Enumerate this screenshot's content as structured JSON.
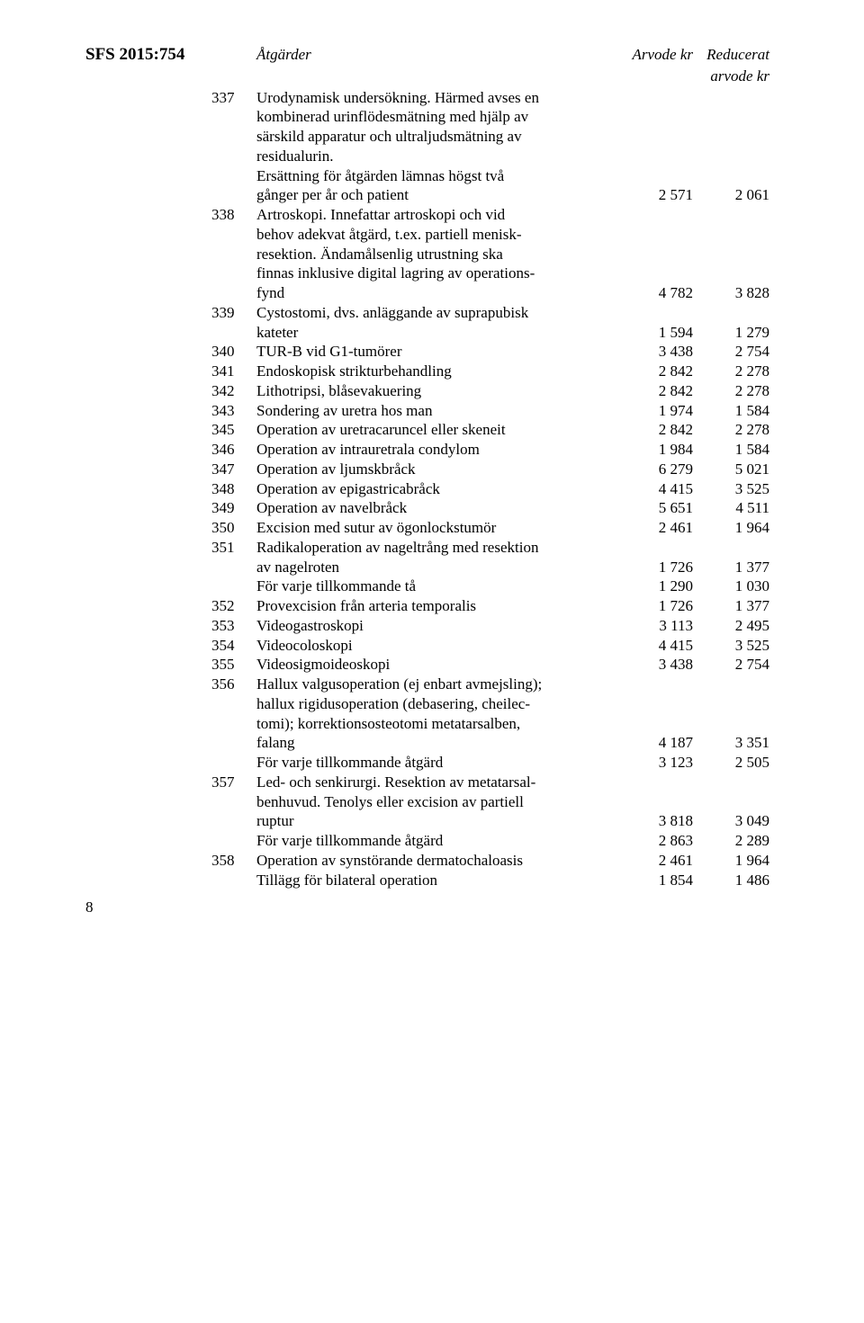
{
  "sfs_label": "SFS 2015:754",
  "page_number": "8",
  "header": {
    "atgarder": "Åtgärder",
    "arvode": "Arvode kr",
    "reducerat1": "Reducerat",
    "reducerat2": "arvode kr"
  },
  "rows": [
    {
      "code": "337",
      "lines": [
        {
          "text": "Urodynamisk undersökning. Härmed avses en"
        },
        {
          "text": "kombinerad urinflödesmätning med hjälp av"
        },
        {
          "text": "särskild apparatur och ultraljudsmätning av"
        },
        {
          "text": "residualurin."
        },
        {
          "text": "Ersättning för åtgärden lämnas högst två"
        },
        {
          "text": "gånger per år och patient",
          "a1": "2 571",
          "a2": "2 061"
        }
      ]
    },
    {
      "code": "338",
      "lines": [
        {
          "text": "Artroskopi. Innefattar artroskopi och vid"
        },
        {
          "text": "behov adekvat åtgärd, t.ex. partiell menisk-"
        },
        {
          "text": "resektion. Ändamålsenlig utrustning ska"
        },
        {
          "text": "finnas inklusive digital lagring av operations-"
        },
        {
          "text": "fynd",
          "a1": "4 782",
          "a2": "3 828"
        }
      ]
    },
    {
      "code": "339",
      "lines": [
        {
          "text": "Cystostomi, dvs. anläggande av suprapubisk"
        },
        {
          "text": "kateter",
          "a1": "1 594",
          "a2": "1 279"
        }
      ]
    },
    {
      "code": "340",
      "lines": [
        {
          "text": "TUR-B vid G1-tumörer",
          "a1": "3 438",
          "a2": "2 754"
        }
      ]
    },
    {
      "code": "341",
      "lines": [
        {
          "text": "Endoskopisk strikturbehandling",
          "a1": "2 842",
          "a2": "2 278"
        }
      ]
    },
    {
      "code": "342",
      "lines": [
        {
          "text": "Lithotripsi, blåsevakuering",
          "a1": "2 842",
          "a2": "2 278"
        }
      ]
    },
    {
      "code": "343",
      "lines": [
        {
          "text": "Sondering av uretra hos man",
          "a1": "1 974",
          "a2": "1 584"
        }
      ]
    },
    {
      "code": "345",
      "lines": [
        {
          "text": "Operation av uretracaruncel eller skeneit",
          "a1": "2 842",
          "a2": "2 278"
        }
      ]
    },
    {
      "code": "346",
      "lines": [
        {
          "text": "Operation av intrauretrala condylom",
          "a1": "1 984",
          "a2": "1 584"
        }
      ]
    },
    {
      "code": "347",
      "lines": [
        {
          "text": "Operation av ljumskbråck",
          "a1": "6 279",
          "a2": "5 021"
        }
      ]
    },
    {
      "code": "348",
      "lines": [
        {
          "text": "Operation av epigastricabråck",
          "a1": "4 415",
          "a2": "3 525"
        }
      ]
    },
    {
      "code": "349",
      "lines": [
        {
          "text": "Operation av navelbråck",
          "a1": "5 651",
          "a2": "4 511"
        }
      ]
    },
    {
      "code": "350",
      "lines": [
        {
          "text": "Excision med sutur av ögonlockstumör",
          "a1": "2 461",
          "a2": "1 964"
        }
      ]
    },
    {
      "code": "351",
      "lines": [
        {
          "text": "Radikaloperation av nageltrång med resektion"
        },
        {
          "text": "av nagelroten",
          "a1": "1 726",
          "a2": "1 377"
        },
        {
          "text": "För varje tillkommande tå",
          "a1": "1 290",
          "a2": "1 030"
        }
      ]
    },
    {
      "code": "352",
      "lines": [
        {
          "text": "Provexcision från arteria temporalis",
          "a1": "1 726",
          "a2": "1 377"
        }
      ]
    },
    {
      "code": "353",
      "lines": [
        {
          "text": "Videogastroskopi",
          "a1": "3 113",
          "a2": "2 495"
        }
      ]
    },
    {
      "code": "354",
      "lines": [
        {
          "text": "Videocoloskopi",
          "a1": "4 415",
          "a2": "3 525"
        }
      ]
    },
    {
      "code": "355",
      "lines": [
        {
          "text": "Videosigmoideoskopi",
          "a1": "3 438",
          "a2": "2 754"
        }
      ]
    },
    {
      "code": "356",
      "lines": [
        {
          "text": "Hallux valgusoperation (ej enbart avmejsling);"
        },
        {
          "text": "hallux rigidusoperation (debasering, cheilec-"
        },
        {
          "text": "tomi); korrektionsosteotomi metatarsalben,"
        },
        {
          "text": "falang",
          "a1": "4 187",
          "a2": "3 351"
        },
        {
          "text": "För varje tillkommande åtgärd",
          "a1": "3 123",
          "a2": "2 505"
        }
      ]
    },
    {
      "code": "357",
      "lines": [
        {
          "text": "Led- och senkirurgi. Resektion av metatarsal-"
        },
        {
          "text": "benhuvud. Tenolys eller excision av partiell"
        },
        {
          "text": "ruptur",
          "a1": "3 818",
          "a2": "3 049"
        },
        {
          "text": "För varje tillkommande åtgärd",
          "a1": "2 863",
          "a2": "2 289"
        }
      ]
    },
    {
      "code": "358",
      "lines": [
        {
          "text": "Operation av synstörande dermatochaloasis",
          "a1": "2 461",
          "a2": "1 964"
        },
        {
          "text": "Tillägg för bilateral operation",
          "a1": "1 854",
          "a2": "1 486"
        }
      ]
    }
  ]
}
